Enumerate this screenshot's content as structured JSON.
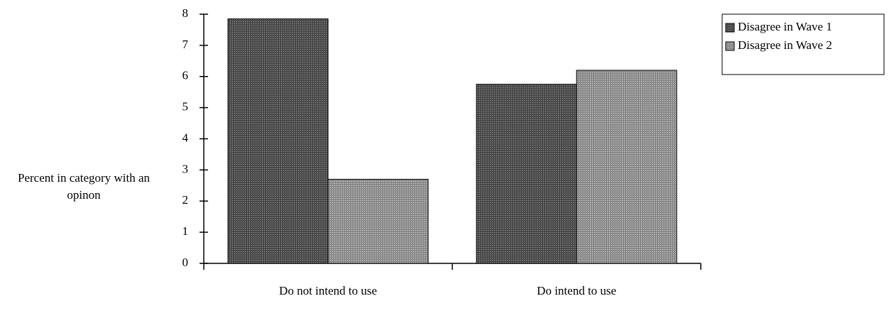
{
  "chart_data": {
    "type": "bar",
    "ylabel": "Percent in category with an opinon",
    "categories": [
      "Do not intend to use",
      "Do intend to use"
    ],
    "series": [
      {
        "name": "Disagree in Wave 1",
        "color": "#4a4a4a",
        "values": [
          7.85,
          5.75
        ]
      },
      {
        "name": "Disagree in Wave 2",
        "color": "#8a8a8a",
        "values": [
          2.7,
          6.2
        ]
      }
    ],
    "ylim": [
      0,
      8
    ],
    "yticks": [
      0,
      1,
      2,
      3,
      4,
      5,
      6,
      7,
      8
    ],
    "legend": "right"
  }
}
